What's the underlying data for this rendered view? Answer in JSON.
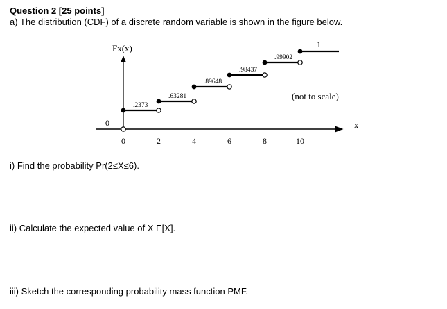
{
  "question": {
    "title": "Question 2 [25 points]",
    "part_a": "a) The distribution (CDF) of a discrete random variable is shown in the figure below.",
    "sub_i": "i) Find the probability Pr(2≤X≤6).",
    "sub_ii": "ii) Calculate the expected value of X E[X].",
    "sub_iii": "iii) Sketch the corresponding probability mass function PMF."
  },
  "figure": {
    "y_label": "Fx(x)",
    "x_label": "x",
    "note": "(not to scale)",
    "y_zero_label": "0"
  },
  "chart_data": {
    "type": "line",
    "title": "",
    "xlabel": "x",
    "ylabel": "Fx(x)",
    "x_ticks": [
      "0",
      "2",
      "4",
      "6",
      "8",
      "10"
    ],
    "steps": [
      {
        "x_start": 0,
        "x_end": 2,
        "value": 0.2373,
        "label": ".2373"
      },
      {
        "x_start": 2,
        "x_end": 4,
        "value": 0.63281,
        "label": ".63281"
      },
      {
        "x_start": 4,
        "x_end": 6,
        "value": 0.89648,
        "label": ".89648"
      },
      {
        "x_start": 6,
        "x_end": 8,
        "value": 0.98437,
        "label": ".98437"
      },
      {
        "x_start": 8,
        "x_end": 10,
        "value": 0.99902,
        "label": ".99902"
      },
      {
        "x_start": 10,
        "x_end": null,
        "value": 1,
        "label": "1"
      }
    ],
    "grid": false,
    "not_to_scale": true
  }
}
